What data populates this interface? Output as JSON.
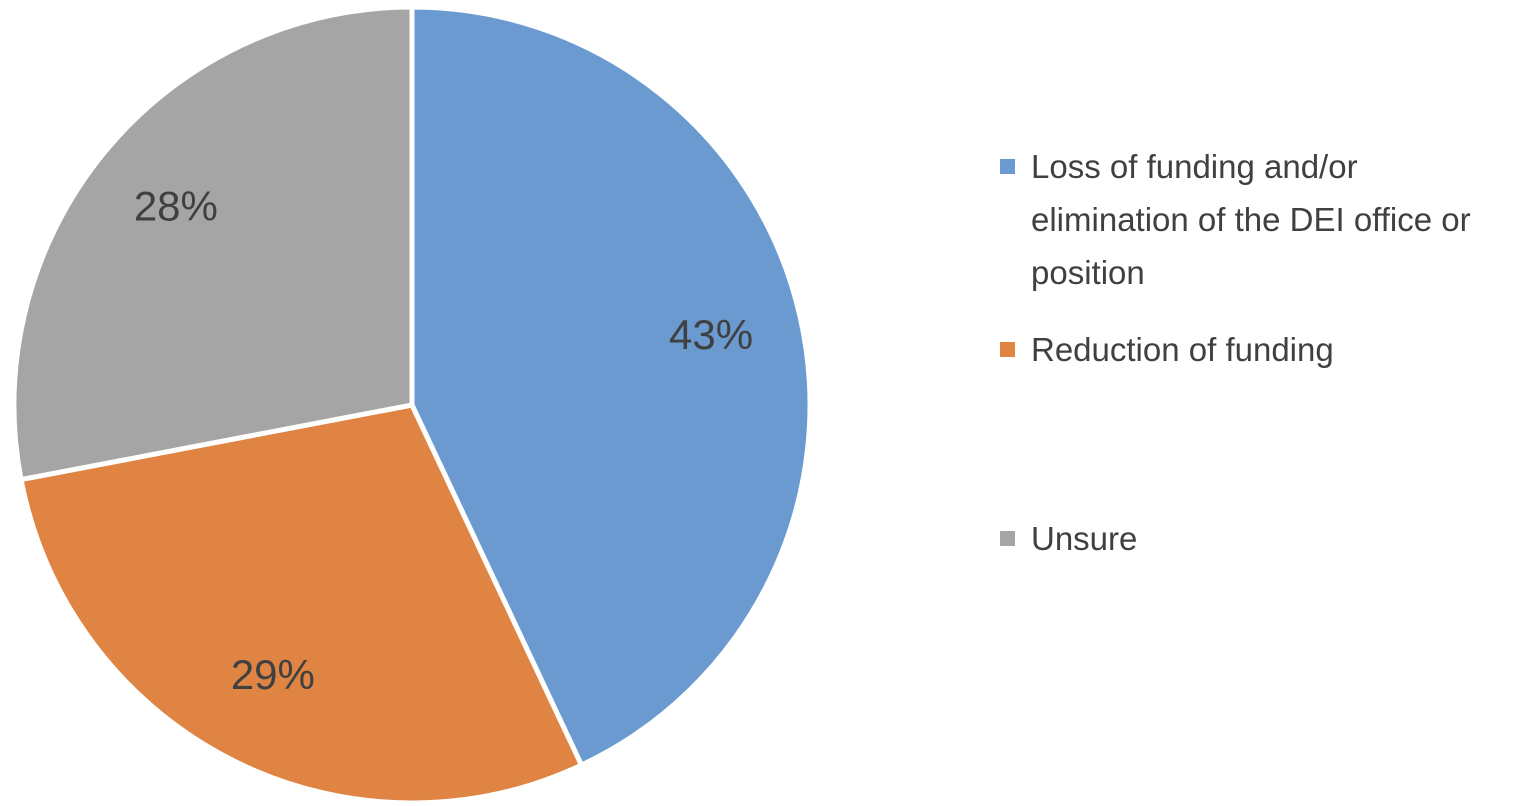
{
  "chart_data": {
    "type": "pie",
    "categories": [
      "Loss of funding and/or elimination of the DEI office or position",
      "Reduction of funding",
      "Unsure"
    ],
    "values": [
      43,
      29,
      28
    ],
    "value_labels": [
      "43%",
      "29%",
      "28%"
    ],
    "colors": [
      "#6a9ad0",
      "#e08444",
      "#a5a5a5"
    ],
    "legend": "right"
  }
}
